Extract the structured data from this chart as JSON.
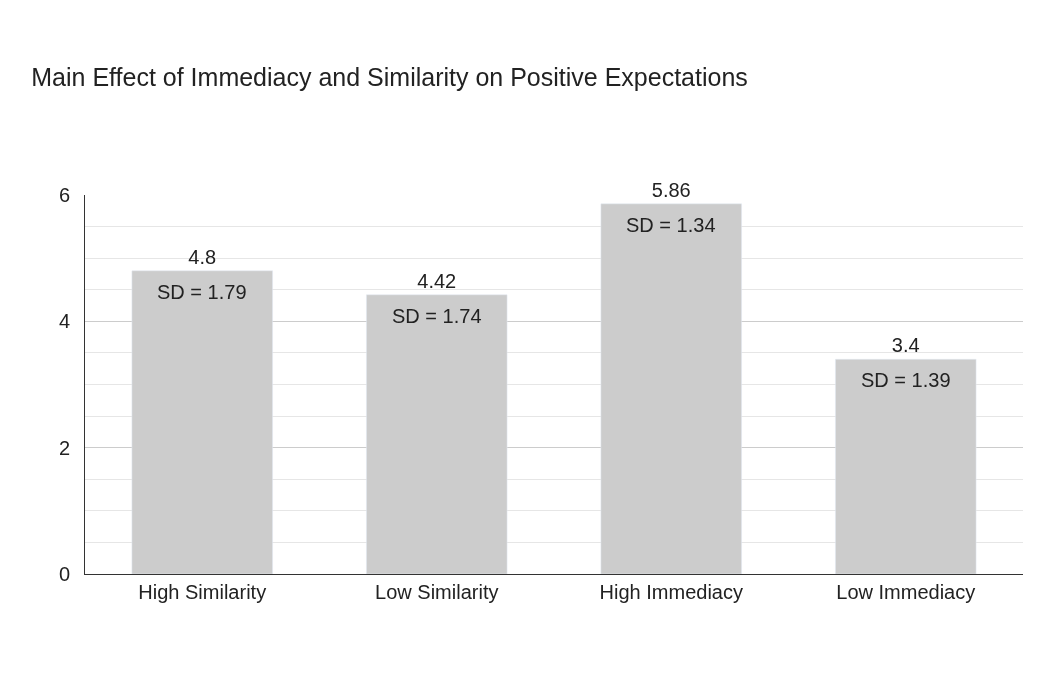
{
  "chart_data": {
    "type": "bar",
    "title": "Main Effect of Immediacy and Similarity on Positive Expectations",
    "categories": [
      "High Similarity",
      "Low Similarity",
      "High Immediacy",
      "Low Immediacy"
    ],
    "values": [
      4.8,
      4.42,
      5.86,
      3.4
    ],
    "color": "#cccccc",
    "data_labels": true,
    "ylim": [
      0,
      6
    ],
    "yticks": [
      0,
      2,
      4,
      6
    ],
    "grid": "y",
    "legend": false,
    "annotations": [
      {
        "text": "SD = 1.79",
        "x": "High Similarity",
        "y": 4.8
      },
      {
        "text": "SD = 1.74",
        "x": "Low Similarity",
        "y": 4.42
      },
      {
        "text": "SD = 1.34",
        "x": "High Immediacy",
        "y": 5.86
      },
      {
        "text": "SD = 1.39",
        "x": "Low Immediacy",
        "y": 3.4
      }
    ]
  }
}
